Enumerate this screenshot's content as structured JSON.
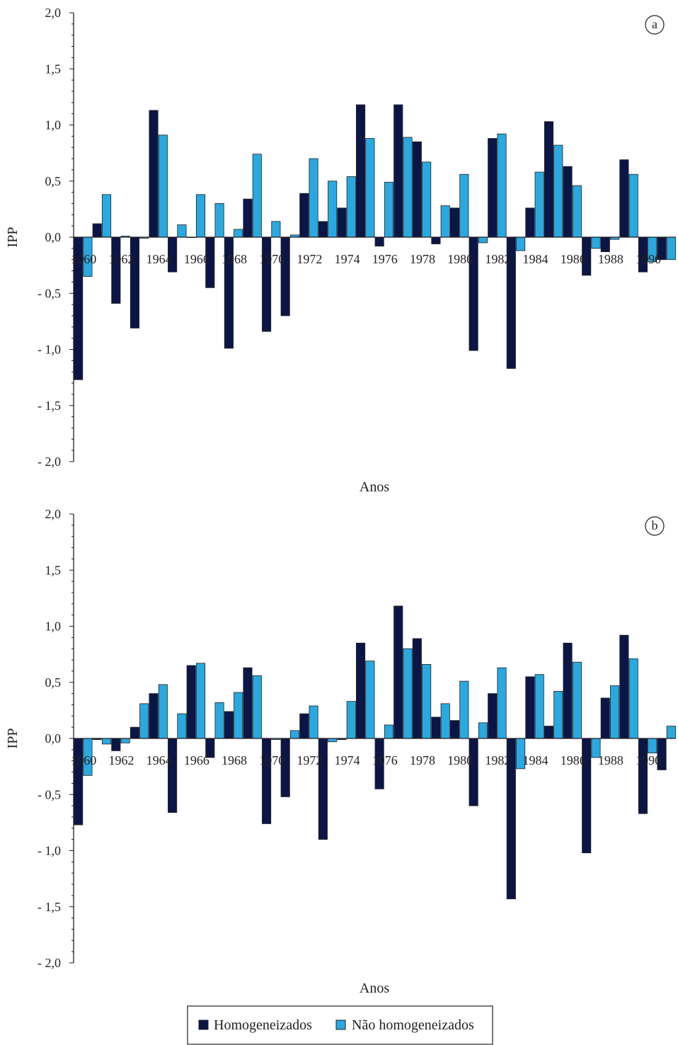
{
  "colors": {
    "homogeneizados": "#0b1646",
    "nao_homogeneizados": "#29a9e0",
    "axis": "#231f20"
  },
  "legend": {
    "items": [
      {
        "label": "Homogeneizados",
        "color_key": "homogeneizados"
      },
      {
        "label": "Não homogeneizados",
        "color_key": "nao_homogeneizados"
      }
    ]
  },
  "chart_data": [
    {
      "type": "bar",
      "panel_label": "a",
      "ylabel": "IPP",
      "xlabel": "Anos",
      "ylim": [
        -2.0,
        2.0
      ],
      "yticks": [
        "2,0",
        "1,5",
        "1,0",
        "0,5",
        "0,0",
        "- 0,5",
        "- 1,0",
        "- 1,5",
        "- 2,0"
      ],
      "ytick_values": [
        2.0,
        1.5,
        1.0,
        0.5,
        0.0,
        -0.5,
        -1.0,
        -1.5,
        -2.0
      ],
      "xtick_labels": [
        "1960",
        "1962",
        "1964",
        "1966",
        "1968",
        "1970",
        "1972",
        "1974",
        "1976",
        "1978",
        "1980",
        "1982",
        "1984",
        "1986",
        "1988",
        "1990"
      ],
      "categories": [
        1960,
        1961,
        1962,
        1963,
        1964,
        1965,
        1966,
        1967,
        1968,
        1969,
        1970,
        1971,
        1972,
        1973,
        1974,
        1975,
        1976,
        1977,
        1978,
        1979,
        1980,
        1981,
        1982,
        1983,
        1984,
        1985,
        1986,
        1987,
        1988,
        1989,
        1990,
        1991
      ],
      "series": [
        {
          "name": "Homogeneizados",
          "values": [
            -1.27,
            0.12,
            -0.59,
            -0.81,
            1.13,
            -0.31,
            0.0,
            -0.45,
            -0.99,
            0.34,
            -0.84,
            -0.7,
            0.39,
            0.14,
            0.26,
            1.18,
            -0.08,
            1.18,
            0.85,
            -0.06,
            0.26,
            -1.01,
            0.88,
            -1.17,
            0.26,
            1.03,
            0.63,
            -0.34,
            -0.13,
            0.69,
            -0.31,
            -0.2
          ]
        },
        {
          "name": "Não homogeneizados",
          "values": [
            -0.35,
            0.38,
            0.01,
            -0.01,
            0.91,
            0.11,
            0.38,
            0.3,
            0.07,
            0.74,
            0.14,
            0.02,
            0.7,
            0.5,
            0.54,
            0.88,
            0.49,
            0.89,
            0.67,
            0.28,
            0.56,
            -0.05,
            0.92,
            -0.12,
            0.58,
            0.82,
            0.46,
            -0.1,
            -0.02,
            0.56,
            -0.22,
            -0.2
          ]
        }
      ]
    },
    {
      "type": "bar",
      "panel_label": "b",
      "ylabel": "IPP",
      "xlabel": "Anos",
      "ylim": [
        -2.0,
        2.0
      ],
      "yticks": [
        "2,0",
        "1,5",
        "1,0",
        "0,5",
        "0,0",
        "- 0,5",
        "- 1,0",
        "- 1,5",
        "- 2,0"
      ],
      "ytick_values": [
        2.0,
        1.5,
        1.0,
        0.5,
        0.0,
        -0.5,
        -1.0,
        -1.5,
        -2.0
      ],
      "xtick_labels": [
        "1960",
        "1962",
        "1964",
        "1966",
        "1968",
        "1970",
        "1972",
        "1974",
        "1976",
        "1978",
        "1980",
        "1982",
        "1984",
        "1986",
        "1988",
        "1990"
      ],
      "categories": [
        1960,
        1961,
        1962,
        1963,
        1964,
        1965,
        1966,
        1967,
        1968,
        1969,
        1970,
        1971,
        1972,
        1973,
        1974,
        1975,
        1976,
        1977,
        1978,
        1979,
        1980,
        1981,
        1982,
        1983,
        1984,
        1985,
        1986,
        1987,
        1988,
        1989,
        1990,
        1991
      ],
      "series": [
        {
          "name": "Homogeneizados",
          "values": [
            -0.77,
            -0.01,
            -0.11,
            0.1,
            0.4,
            -0.66,
            0.65,
            -0.17,
            0.24,
            0.63,
            -0.76,
            -0.52,
            0.22,
            -0.9,
            -0.01,
            0.85,
            -0.45,
            1.18,
            0.89,
            0.19,
            0.16,
            -0.6,
            0.4,
            -1.43,
            0.55,
            0.11,
            0.85,
            -1.02,
            0.36,
            0.92,
            -0.67,
            -0.28
          ]
        },
        {
          "name": "Não homogeneizados",
          "values": [
            -0.33,
            -0.05,
            -0.04,
            0.31,
            0.48,
            0.22,
            0.67,
            0.32,
            0.41,
            0.56,
            -0.01,
            0.07,
            0.29,
            -0.03,
            0.33,
            0.69,
            0.12,
            0.8,
            0.66,
            0.31,
            0.51,
            0.14,
            0.63,
            -0.27,
            0.57,
            0.42,
            0.68,
            -0.17,
            0.47,
            0.71,
            -0.13,
            0.11
          ]
        }
      ]
    }
  ]
}
